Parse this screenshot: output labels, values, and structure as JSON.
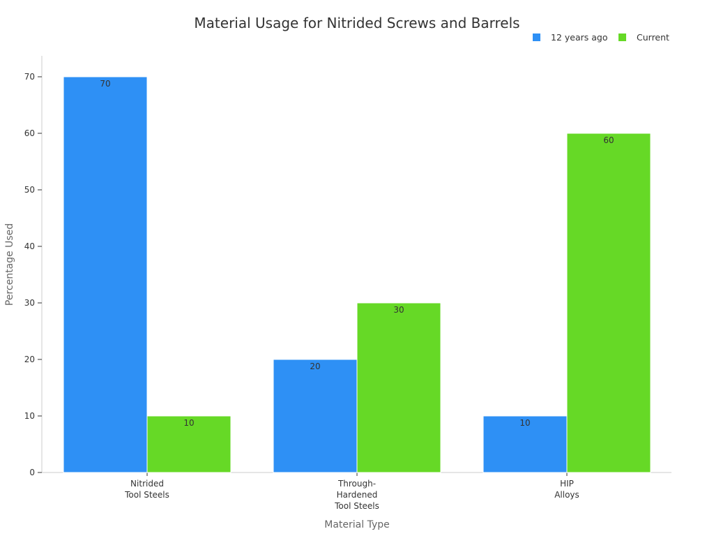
{
  "chart_data": {
    "type": "bar",
    "title": "Material Usage for Nitrided Screws and Barrels",
    "xlabel": "Material Type",
    "ylabel": "Percentage Used",
    "categories": [
      [
        "Nitrided",
        "Tool Steels"
      ],
      [
        "Through-",
        "Hardened",
        "Tool Steels"
      ],
      [
        "HIP",
        "Alloys"
      ]
    ],
    "series": [
      {
        "name": "12 years ago",
        "color": "#2e90f5",
        "values": [
          70,
          20,
          10
        ]
      },
      {
        "name": "Current",
        "color": "#66d926",
        "values": [
          10,
          30,
          60
        ]
      }
    ],
    "ylim": [
      0,
      70
    ],
    "yticks": [
      0,
      10,
      20,
      30,
      40,
      50,
      60,
      70
    ],
    "grid": false,
    "legend_position": "top-right",
    "data_labels": true
  }
}
